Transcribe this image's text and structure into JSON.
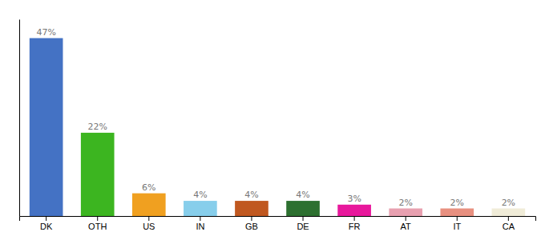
{
  "chart_data": {
    "type": "bar",
    "categories": [
      "DK",
      "OTH",
      "US",
      "IN",
      "GB",
      "DE",
      "FR",
      "AT",
      "IT",
      "CA"
    ],
    "values": [
      47,
      22,
      6,
      4,
      4,
      4,
      3,
      2,
      2,
      2
    ],
    "value_labels": [
      "47%",
      "22%",
      "6%",
      "4%",
      "4%",
      "4%",
      "3%",
      "2%",
      "2%",
      "2%"
    ],
    "colors": [
      "#4472c4",
      "#3cb520",
      "#f0a020",
      "#87ceeb",
      "#c05820",
      "#2d7030",
      "#e8189c",
      "#e8a0b0",
      "#e89080",
      "#f0ecd8"
    ],
    "ylim": [
      0,
      52
    ],
    "grid": false,
    "data_labels": true,
    "tick_labels": "x"
  }
}
